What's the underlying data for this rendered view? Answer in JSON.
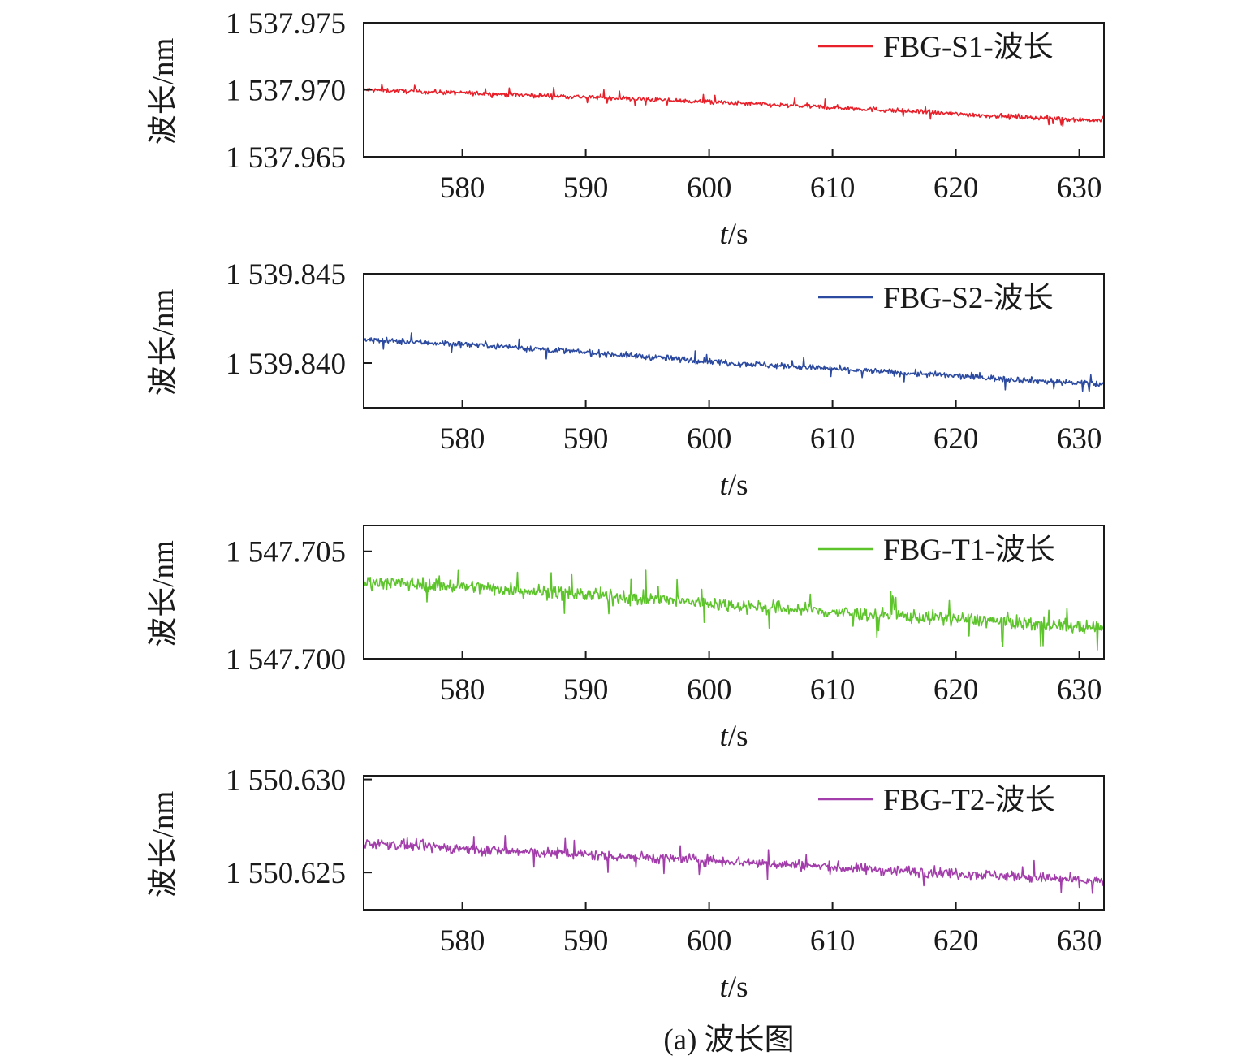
{
  "figure": {
    "caption": "(a) 波长图"
  },
  "chart_data": [
    {
      "type": "line",
      "xlabel": "t/s",
      "xlabel_italic": "t",
      "xlabel_rest": "/s",
      "ylabel": "波长/nm",
      "xlim": [
        572,
        632
      ],
      "ylim": [
        1537.965,
        1537.975
      ],
      "x_ticks": [
        580,
        590,
        600,
        610,
        620,
        630
      ],
      "x_tick_labels": [
        "580",
        "590",
        "600",
        "610",
        "620",
        "630"
      ],
      "y_ticks": [
        1537.965,
        1537.97,
        1537.975
      ],
      "y_tick_labels": [
        "1 537.965",
        "1 537.970",
        "1 537.975"
      ],
      "legend_position": "top-right",
      "series": [
        {
          "name": "FBG-S1-波长",
          "color": "#e8202a",
          "x": [
            572,
            582,
            592,
            602,
            612,
            622,
            632
          ],
          "y": [
            1537.97,
            1537.9697,
            1537.9694,
            1537.969,
            1537.9686,
            1537.9681,
            1537.9677
          ],
          "noise_amplitude": 0.0003
        }
      ]
    },
    {
      "type": "line",
      "xlabel": "t/s",
      "xlabel_italic": "t",
      "xlabel_rest": "/s",
      "ylabel": "波长/nm",
      "xlim": [
        572,
        632
      ],
      "ylim": [
        1539.8375,
        1539.845
      ],
      "x_ticks": [
        580,
        590,
        600,
        610,
        620,
        630
      ],
      "x_tick_labels": [
        "580",
        "590",
        "600",
        "610",
        "620",
        "630"
      ],
      "y_ticks": [
        1539.84,
        1539.845
      ],
      "y_tick_labels": [
        "1 539.840",
        "1 539.845"
      ],
      "legend_position": "top-right",
      "series": [
        {
          "name": "FBG-S2-波长",
          "color": "#2b4aa0",
          "x": [
            572,
            582,
            592,
            602,
            612,
            622,
            632
          ],
          "y": [
            1539.8413,
            1539.841,
            1539.8405,
            1539.84,
            1539.8396,
            1539.8392,
            1539.8388
          ],
          "noise_amplitude": 0.0003
        }
      ]
    },
    {
      "type": "line",
      "xlabel": "t/s",
      "xlabel_italic": "t",
      "xlabel_rest": "/s",
      "ylabel": "波长/nm",
      "xlim": [
        572,
        632
      ],
      "ylim": [
        1547.7,
        1547.7062
      ],
      "x_ticks": [
        580,
        590,
        600,
        610,
        620,
        630
      ],
      "x_tick_labels": [
        "580",
        "590",
        "600",
        "610",
        "620",
        "630"
      ],
      "y_ticks": [
        1547.7,
        1547.705
      ],
      "y_tick_labels": [
        "1 547.700",
        "1 547.705"
      ],
      "legend_position": "top-right",
      "series": [
        {
          "name": "FBG-T1-波长",
          "color": "#5ec42c",
          "x": [
            572,
            582,
            592,
            602,
            612,
            622,
            632
          ],
          "y": [
            1547.7036,
            1547.7033,
            1547.7029,
            1547.7025,
            1547.7021,
            1547.7018,
            1547.7014
          ],
          "noise_amplitude": 0.00055
        }
      ]
    },
    {
      "type": "line",
      "xlabel": "t/s",
      "xlabel_italic": "t",
      "xlabel_rest": "/s",
      "ylabel": "波长/nm",
      "xlim": [
        572,
        632
      ],
      "ylim": [
        1550.623,
        1550.6302
      ],
      "x_ticks": [
        580,
        590,
        600,
        610,
        620,
        630
      ],
      "x_tick_labels": [
        "580",
        "590",
        "600",
        "610",
        "620",
        "630"
      ],
      "y_ticks": [
        1550.625,
        1550.63
      ],
      "y_tick_labels": [
        "1 550.625",
        "1 550.630"
      ],
      "legend_position": "top-right",
      "series": [
        {
          "name": "FBG-T2-波长",
          "color": "#a33dab",
          "x": [
            572,
            582,
            592,
            602,
            612,
            622,
            632
          ],
          "y": [
            1550.6266,
            1550.6262,
            1550.6259,
            1550.6256,
            1550.6252,
            1550.6249,
            1550.6245
          ],
          "noise_amplitude": 0.0005
        }
      ]
    }
  ]
}
